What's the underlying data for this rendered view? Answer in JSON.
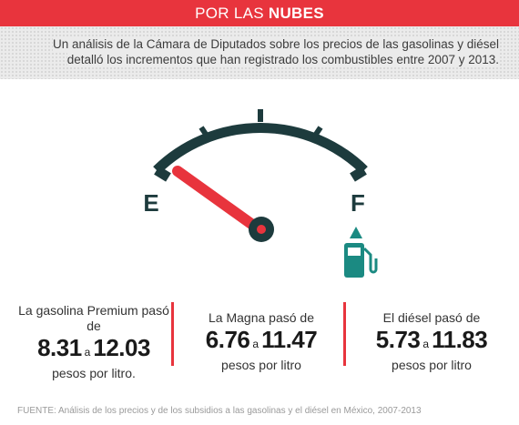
{
  "header": {
    "title_prefix": "POR LAS",
    "title_strong": "NUBES"
  },
  "subtitle": "Un análisis de la Cámara de Diputados sobre los precios de las gasolinas y diésel detalló los incrementos que han registrado los combustibles entre 2007 y 2013.",
  "gauge": {
    "empty_label": "E",
    "full_label": "F",
    "level": 0,
    "needle_color": "#e8343d",
    "dial_color": "#1d3b3d",
    "pump_color": "#1b8a82"
  },
  "fuels": [
    {
      "lead": "La gasolina Premium pasó de",
      "from": "8.31",
      "sep": "a",
      "to": "12.03",
      "tail": "pesos por litro."
    },
    {
      "lead": "La Magna pasó de",
      "from": "6.76",
      "sep": "a",
      "to": "11.47",
      "tail": "pesos por litro"
    },
    {
      "lead": "El diésel pasó de",
      "from": "5.73",
      "sep": "a",
      "to": "11.83",
      "tail": "pesos por litro"
    }
  ],
  "source": "FUENTE: Análisis de los precios y de los subsidios a las gasolinas y el diésel en México, 2007-2013"
}
